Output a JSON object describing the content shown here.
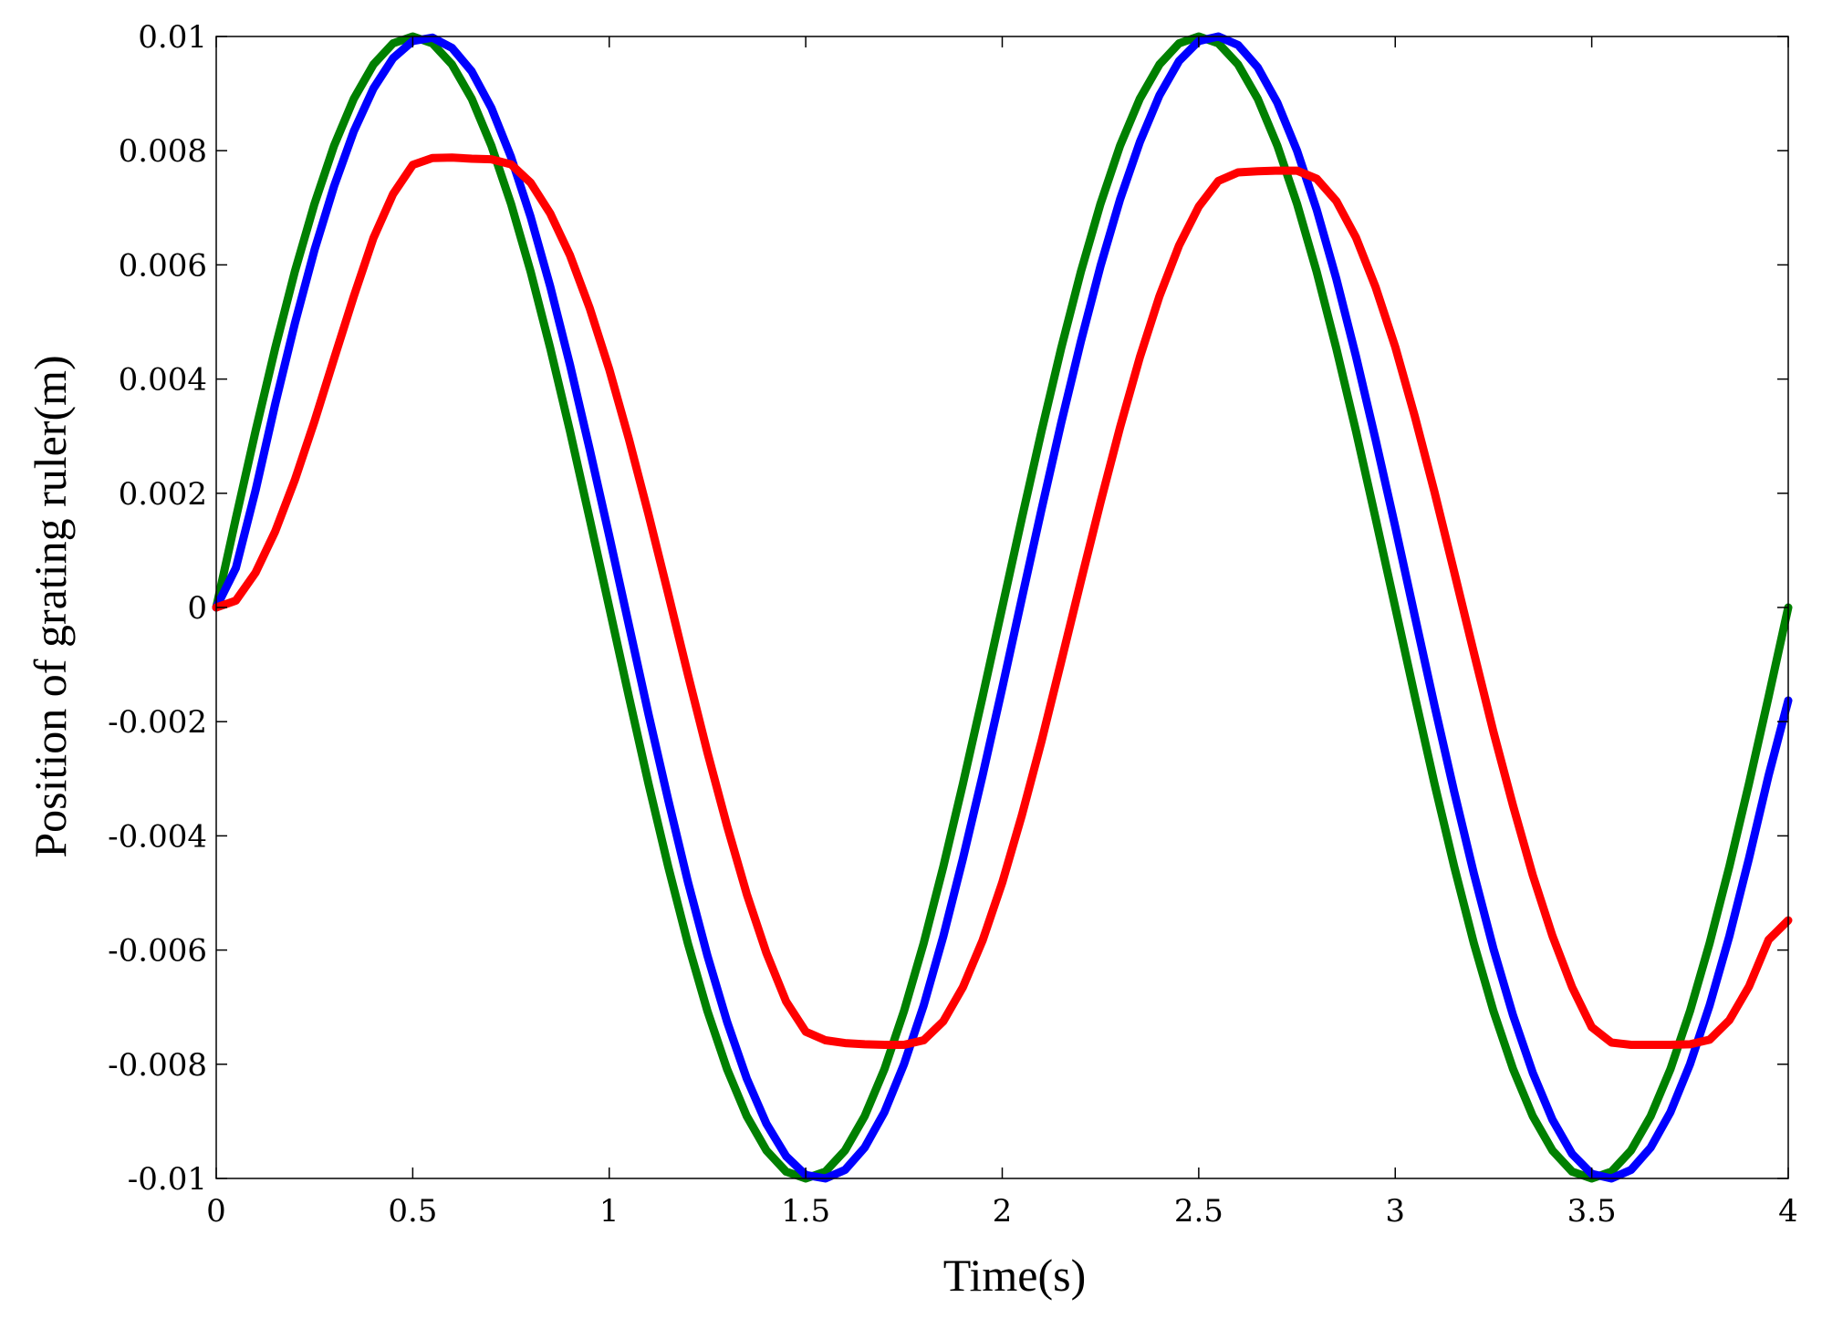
{
  "chart_data": {
    "type": "line",
    "xlabel": "Time(s)",
    "ylabel": "Position of grating ruler(m)",
    "xlim": [
      0,
      4
    ],
    "ylim": [
      -0.01,
      0.01
    ],
    "grid": false,
    "box": true,
    "x_ticks": [
      0,
      0.5,
      1,
      1.5,
      2,
      2.5,
      3,
      3.5,
      4
    ],
    "x_tick_labels": [
      "0",
      "0.5",
      "1",
      "1.5",
      "2",
      "2.5",
      "3",
      "3.5",
      "4"
    ],
    "y_ticks": [
      -0.01,
      -0.008,
      -0.006,
      -0.004,
      -0.002,
      0,
      0.002,
      0.004,
      0.006,
      0.008,
      0.01
    ],
    "y_tick_labels": [
      "-0.01",
      "-0.008",
      "-0.006",
      "-0.004",
      "-0.002",
      "0",
      "0.002",
      "0.004",
      "0.006",
      "0.008",
      "0.01"
    ],
    "series": [
      {
        "color": "#008000",
        "x": [
          0,
          0.05,
          0.1,
          0.15,
          0.2,
          0.25,
          0.3,
          0.35,
          0.4,
          0.45,
          0.5,
          0.55,
          0.6,
          0.65,
          0.7,
          0.75,
          0.8,
          0.85,
          0.9,
          0.95,
          1,
          1.05,
          1.1,
          1.15,
          1.2,
          1.25,
          1.3,
          1.35,
          1.4,
          1.45,
          1.5,
          1.55,
          1.6,
          1.65,
          1.7,
          1.75,
          1.8,
          1.85,
          1.9,
          1.95,
          2,
          2.05,
          2.1,
          2.15,
          2.2,
          2.25,
          2.3,
          2.35,
          2.4,
          2.45,
          2.5,
          2.55,
          2.6,
          2.65,
          2.7,
          2.75,
          2.8,
          2.85,
          2.9,
          2.95,
          3,
          3.05,
          3.1,
          3.15,
          3.2,
          3.25,
          3.3,
          3.35,
          3.4,
          3.45,
          3.5,
          3.55,
          3.6,
          3.65,
          3.7,
          3.75,
          3.8,
          3.85,
          3.9,
          3.95,
          4
        ],
        "y": [
          0,
          0.00156,
          0.00309,
          0.00454,
          0.00588,
          0.00707,
          0.00809,
          0.00891,
          0.00951,
          0.00988,
          0.01,
          0.00988,
          0.00951,
          0.00891,
          0.00809,
          0.00707,
          0.00588,
          0.00454,
          0.00309,
          0.00156,
          0,
          -0.00156,
          -0.00309,
          -0.00454,
          -0.00588,
          -0.00707,
          -0.00809,
          -0.00891,
          -0.00951,
          -0.00988,
          -0.01,
          -0.00988,
          -0.00951,
          -0.00891,
          -0.00809,
          -0.00707,
          -0.00588,
          -0.00454,
          -0.00309,
          -0.00156,
          0,
          0.00156,
          0.00309,
          0.00454,
          0.00588,
          0.00707,
          0.00809,
          0.00891,
          0.00951,
          0.00988,
          0.01,
          0.00988,
          0.00951,
          0.00891,
          0.00809,
          0.00707,
          0.00588,
          0.00454,
          0.00309,
          0.00156,
          0,
          -0.00156,
          -0.00309,
          -0.00454,
          -0.00588,
          -0.00707,
          -0.00809,
          -0.00891,
          -0.00951,
          -0.00988,
          -0.01,
          -0.00988,
          -0.00951,
          -0.00891,
          -0.00809,
          -0.00707,
          -0.00588,
          -0.00454,
          -0.00309,
          -0.00156,
          0
        ]
      },
      {
        "color": "#0000ff",
        "x": [
          0,
          0.05,
          0.1,
          0.15,
          0.2,
          0.25,
          0.3,
          0.35,
          0.4,
          0.45,
          0.5,
          0.55,
          0.6,
          0.65,
          0.7,
          0.75,
          0.8,
          0.85,
          0.9,
          0.95,
          1,
          1.05,
          1.1,
          1.15,
          1.2,
          1.25,
          1.3,
          1.35,
          1.4,
          1.45,
          1.5,
          1.55,
          1.6,
          1.65,
          1.7,
          1.75,
          1.8,
          1.85,
          1.9,
          1.95,
          2,
          2.05,
          2.1,
          2.15,
          2.2,
          2.25,
          2.3,
          2.35,
          2.4,
          2.45,
          2.5,
          2.55,
          2.6,
          2.65,
          2.7,
          2.75,
          2.8,
          2.85,
          2.9,
          2.95,
          3,
          3.05,
          3.1,
          3.15,
          3.2,
          3.25,
          3.3,
          3.35,
          3.4,
          3.45,
          3.5,
          3.55,
          3.6,
          3.65,
          3.7,
          3.75,
          3.8,
          3.85,
          3.9,
          3.95,
          4
        ],
        "y": [
          0,
          0.00069,
          0.00205,
          0.00356,
          0.00497,
          0.00626,
          0.00738,
          0.00834,
          0.00909,
          0.00962,
          0.00992,
          0.00998,
          0.0098,
          0.00939,
          0.00875,
          0.00789,
          0.00684,
          0.00562,
          0.00425,
          0.00278,
          0.00125,
          -0.00031,
          -0.00187,
          -0.00337,
          -0.0048,
          -0.0061,
          -0.00726,
          -0.00825,
          -0.00904,
          -0.00961,
          -0.00994,
          -0.01,
          -0.00985,
          -0.00946,
          -0.00884,
          -0.008,
          -0.00697,
          -0.00576,
          -0.0044,
          -0.00294,
          -0.00141,
          0.00016,
          0.00172,
          0.00323,
          0.00466,
          0.00598,
          0.00715,
          0.00815,
          0.00897,
          0.00957,
          0.00992,
          0.01,
          0.00985,
          0.00946,
          0.00884,
          0.008,
          0.00697,
          0.00576,
          0.0044,
          0.00294,
          0.00141,
          -0.00016,
          -0.00172,
          -0.00323,
          -0.00466,
          -0.00598,
          -0.00715,
          -0.00815,
          -0.00897,
          -0.00957,
          -0.00992,
          -0.01,
          -0.00985,
          -0.00946,
          -0.00884,
          -0.008,
          -0.00697,
          -0.00576,
          -0.0044,
          -0.00294,
          -0.00163
        ]
      },
      {
        "color": "#ff0000",
        "x": [
          0,
          0.05,
          0.1,
          0.15,
          0.2,
          0.25,
          0.3,
          0.35,
          0.4,
          0.45,
          0.5,
          0.55,
          0.6,
          0.65,
          0.7,
          0.75,
          0.8,
          0.85,
          0.9,
          0.95,
          1,
          1.05,
          1.1,
          1.15,
          1.2,
          1.25,
          1.3,
          1.35,
          1.4,
          1.45,
          1.5,
          1.55,
          1.6,
          1.65,
          1.7,
          1.75,
          1.8,
          1.85,
          1.9,
          1.95,
          2,
          2.05,
          2.1,
          2.15,
          2.2,
          2.25,
          2.3,
          2.35,
          2.4,
          2.45,
          2.5,
          2.55,
          2.6,
          2.65,
          2.7,
          2.75,
          2.8,
          2.85,
          2.9,
          2.95,
          3,
          3.05,
          3.1,
          3.15,
          3.2,
          3.25,
          3.3,
          3.35,
          3.4,
          3.45,
          3.5,
          3.55,
          3.6,
          3.65,
          3.7,
          3.75,
          3.8,
          3.85,
          3.9,
          3.95,
          4
        ],
        "y": [
          0,
          0.00012,
          0.00061,
          0.00133,
          0.00223,
          0.00326,
          0.00436,
          0.00545,
          0.00647,
          0.00724,
          0.00775,
          0.00787,
          0.00788,
          0.00786,
          0.00785,
          0.00776,
          0.00744,
          0.0069,
          0.00617,
          0.00525,
          0.00417,
          0.00295,
          0.00163,
          0.00024,
          -0.00117,
          -0.00254,
          -0.00383,
          -0.00502,
          -0.00605,
          -0.0069,
          -0.00743,
          -0.00758,
          -0.00763,
          -0.00765,
          -0.00766,
          -0.00766,
          -0.00758,
          -0.00725,
          -0.00665,
          -0.00583,
          -0.00482,
          -0.00364,
          -0.00234,
          -0.00095,
          0.00046,
          0.00184,
          0.00316,
          0.00438,
          0.00545,
          0.00634,
          0.00702,
          0.00747,
          0.00762,
          0.00764,
          0.00765,
          0.00765,
          0.00751,
          0.00712,
          0.00648,
          0.00561,
          0.00456,
          0.00334,
          0.00202,
          0.00062,
          -0.00079,
          -0.00218,
          -0.00348,
          -0.00469,
          -0.00575,
          -0.00665,
          -0.00735,
          -0.00762,
          -0.00766,
          -0.00766,
          -0.00766,
          -0.00765,
          -0.00757,
          -0.00723,
          -0.00664,
          -0.00582,
          -0.00548
        ]
      }
    ]
  }
}
